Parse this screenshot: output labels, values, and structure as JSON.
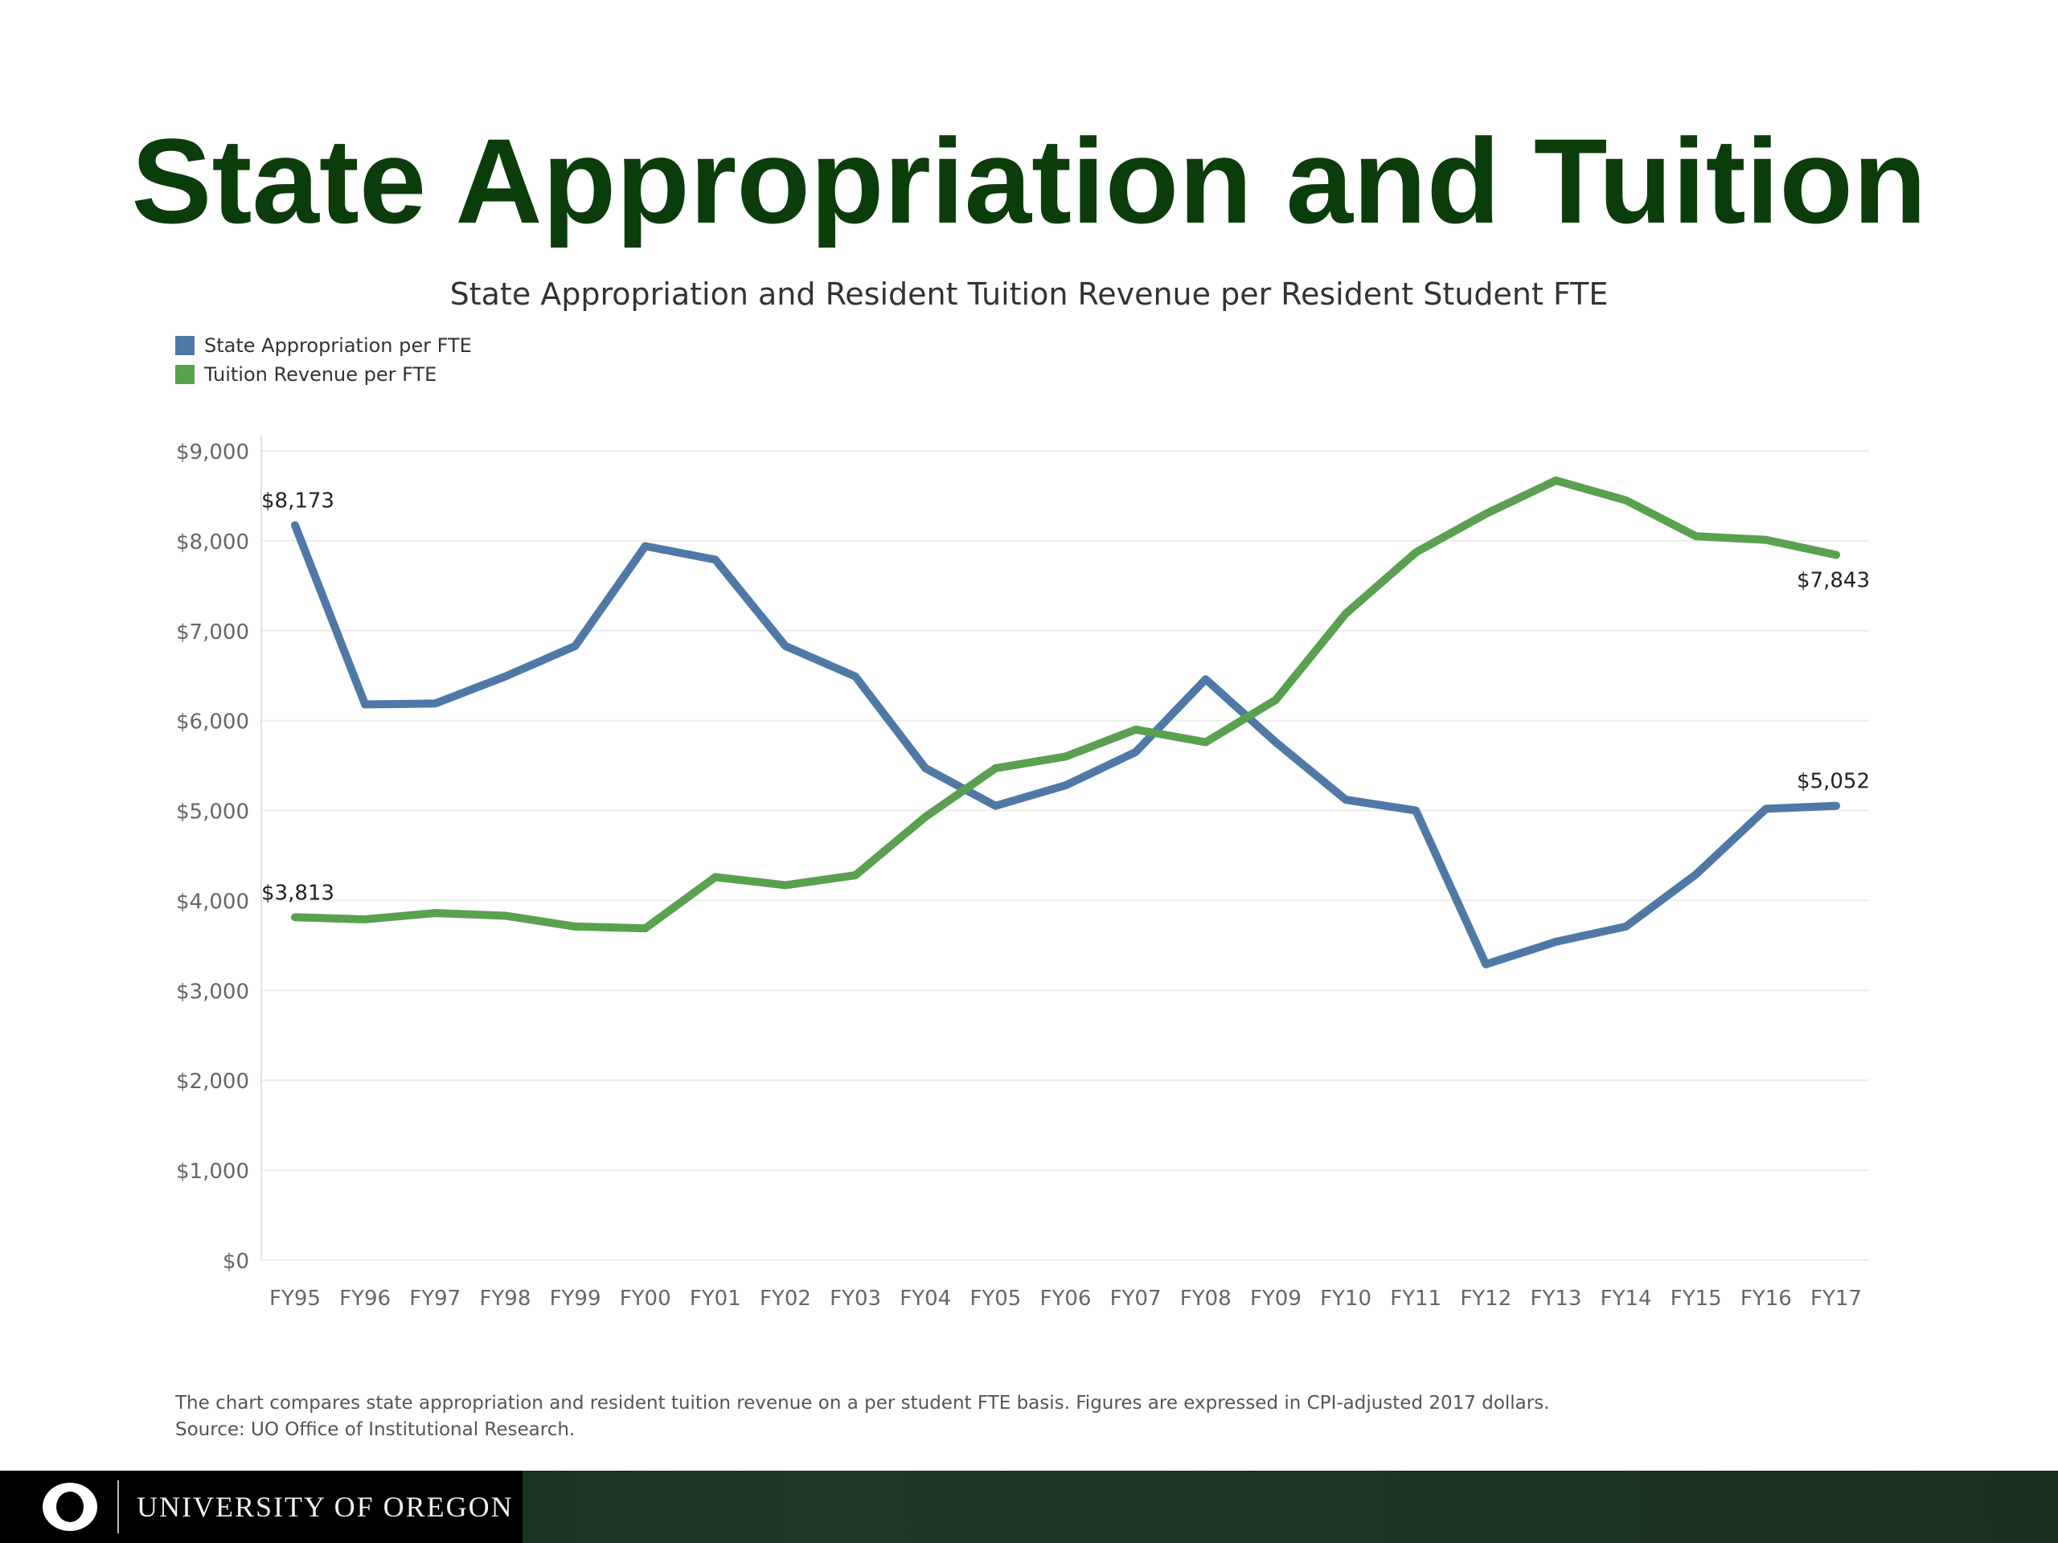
{
  "slide": {
    "title": "State Appropriation and Tuition"
  },
  "chart_data": {
    "type": "line",
    "title": "State Appropriation and Resident Tuition Revenue per Resident Student FTE",
    "xlabel": "",
    "ylabel": "",
    "categories": [
      "FY95",
      "FY96",
      "FY97",
      "FY98",
      "FY99",
      "FY00",
      "FY01",
      "FY02",
      "FY03",
      "FY04",
      "FY05",
      "FY06",
      "FY07",
      "FY08",
      "FY09",
      "FY10",
      "FY11",
      "FY12",
      "FY13",
      "FY14",
      "FY15",
      "FY16",
      "FY17"
    ],
    "ylim": [
      0,
      9000
    ],
    "yticks": [
      "$0",
      "$1,000",
      "$2,000",
      "$3,000",
      "$4,000",
      "$5,000",
      "$6,000",
      "$7,000",
      "$8,000",
      "$9,000"
    ],
    "grid": true,
    "legend_position": "top-left",
    "series": [
      {
        "name": "State Appropriation per FTE",
        "color": "#4e79a7",
        "values": [
          8173,
          6180,
          6190,
          6490,
          6830,
          7940,
          7790,
          6830,
          6490,
          5470,
          5052,
          5280,
          5650,
          6460,
          5760,
          5120,
          5000,
          3290,
          3540,
          3710,
          4290,
          5020,
          5052
        ]
      },
      {
        "name": "Tuition Revenue per FTE",
        "color": "#59a14f",
        "values": [
          3813,
          3790,
          3860,
          3830,
          3710,
          3690,
          4260,
          4170,
          4280,
          4930,
          5470,
          5600,
          5900,
          5760,
          6230,
          7190,
          7870,
          8300,
          8670,
          8450,
          8050,
          8010,
          7843
        ]
      }
    ],
    "annotations": [
      {
        "series": 0,
        "index": 0,
        "text": "$8,173",
        "position": "above"
      },
      {
        "series": 0,
        "index": 22,
        "text": "$5,052",
        "position": "above"
      },
      {
        "series": 1,
        "index": 0,
        "text": "$3,813",
        "position": "above"
      },
      {
        "series": 1,
        "index": 22,
        "text": "$7,843",
        "position": "below"
      }
    ]
  },
  "footnote": {
    "line1": "The chart compares state appropriation and resident tuition revenue on a per student FTE basis. Figures are expressed in CPI-adjusted 2017 dollars.",
    "line2": "Source: UO Office of Institutional Research."
  },
  "footer": {
    "logo_letter": "O",
    "wordmark": "UNIVERSITY OF OREGON"
  }
}
